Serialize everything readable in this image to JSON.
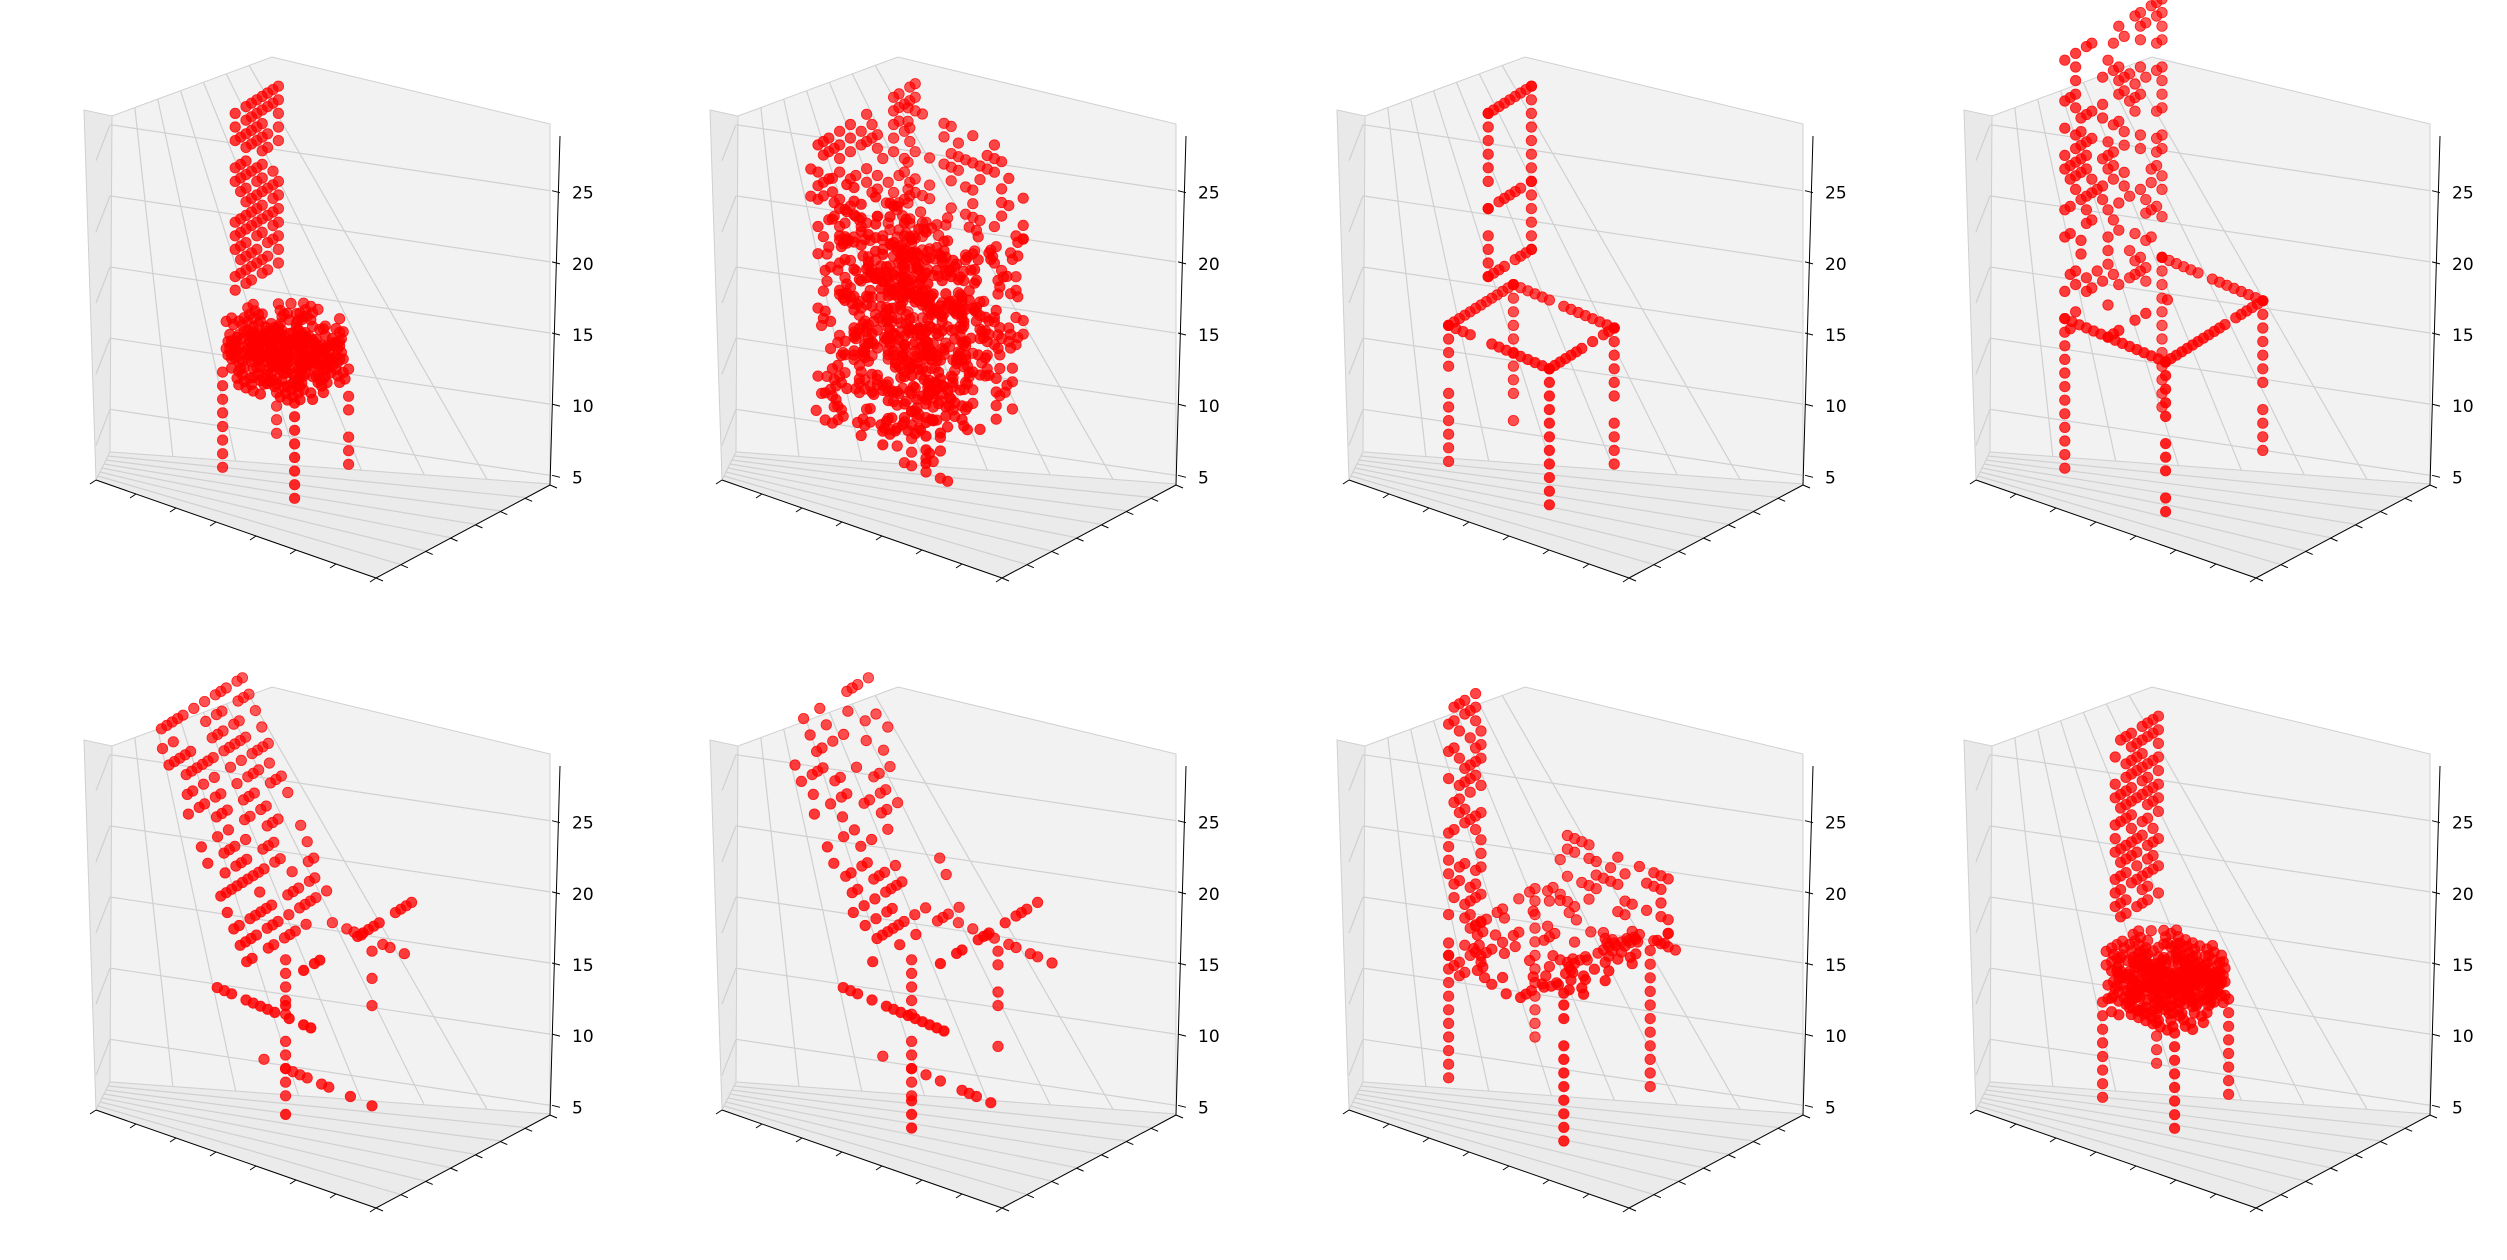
{
  "figure": {
    "background": "#ffffff",
    "marker_color": "#ff0000",
    "pane_colors": {
      "back": "#f2f2f2",
      "side": "#e9e9e9",
      "floor": "#ebebeb",
      "grid": "#d0d0d0"
    }
  },
  "chart_data": [
    {
      "type": "scatter",
      "kind": "3d-voxel-scatter",
      "shape": "chair: tall slatted back, thick round cushioned seat, four legs",
      "zlim": [
        2,
        28
      ],
      "z_ticks": [
        5,
        10,
        15,
        20,
        25
      ],
      "z_tick_labels": [
        "5",
        "10",
        "15",
        "20",
        "25"
      ],
      "x_tick_labels": [],
      "y_tick_labels": [],
      "marker_color": "#ff0000"
    },
    {
      "type": "scatter",
      "kind": "3d-voxel-scatter",
      "shape": "armchair: dense bulky upholstered body with rolled arms",
      "zlim": [
        2,
        28
      ],
      "z_ticks": [
        5,
        10,
        15,
        20,
        25
      ],
      "z_tick_labels": [
        "5",
        "10",
        "15",
        "20",
        "25"
      ],
      "x_tick_labels": [],
      "y_tick_labels": [],
      "marker_color": "#ff0000"
    },
    {
      "type": "scatter",
      "kind": "3d-voxel-scatter",
      "shape": "chair: open back frame with cross rail, thin seat frame, four legs",
      "zlim": [
        2,
        28
      ],
      "z_ticks": [
        5,
        10,
        15,
        20,
        25
      ],
      "z_tick_labels": [
        "5",
        "10",
        "15",
        "20",
        "25"
      ],
      "x_tick_labels": [],
      "y_tick_labels": [],
      "marker_color": "#ff0000"
    },
    {
      "type": "scatter",
      "kind": "3d-voxel-scatter",
      "shape": "chair: wide tall sparse back panel, frame seat, four legs",
      "zlim": [
        2,
        28
      ],
      "z_ticks": [
        5,
        10,
        15,
        20,
        25
      ],
      "z_tick_labels": [
        "5",
        "10",
        "15",
        "20",
        "25"
      ],
      "x_tick_labels": [],
      "y_tick_labels": [],
      "marker_color": "#ff0000"
    },
    {
      "type": "scatter",
      "kind": "3d-voxel-scatter",
      "shape": "reclined lounge chair with slanted backrest and arms",
      "zlim": [
        2,
        28
      ],
      "z_ticks": [
        5,
        10,
        15,
        20,
        25
      ],
      "z_tick_labels": [
        "5",
        "10",
        "15",
        "20",
        "25"
      ],
      "x_tick_labels": [],
      "y_tick_labels": [],
      "marker_color": "#ff0000"
    },
    {
      "type": "scatter",
      "kind": "3d-voxel-scatter",
      "shape": "reclined chair, sparser voxels, slanted back and base",
      "zlim": [
        2,
        28
      ],
      "z_ticks": [
        5,
        10,
        15,
        20,
        25
      ],
      "z_tick_labels": [
        "5",
        "10",
        "15",
        "20",
        "25"
      ],
      "x_tick_labels": [],
      "y_tick_labels": [],
      "marker_color": "#ff0000"
    },
    {
      "type": "scatter",
      "kind": "3d-voxel-scatter",
      "shape": "armchair with high back, wide seat and arms",
      "zlim": [
        2,
        28
      ],
      "z_ticks": [
        5,
        10,
        15,
        20,
        25
      ],
      "z_tick_labels": [
        "5",
        "10",
        "15",
        "20",
        "25"
      ],
      "x_tick_labels": [],
      "y_tick_labels": [],
      "marker_color": "#ff0000"
    },
    {
      "type": "scatter",
      "kind": "3d-voxel-scatter",
      "shape": "chair: slatted back, thick round cushioned seat, four legs",
      "zlim": [
        2,
        28
      ],
      "z_ticks": [
        5,
        10,
        15,
        20,
        25
      ],
      "z_tick_labels": [
        "5",
        "10",
        "15",
        "20",
        "25"
      ],
      "x_tick_labels": [],
      "y_tick_labels": [],
      "marker_color": "#ff0000"
    }
  ]
}
